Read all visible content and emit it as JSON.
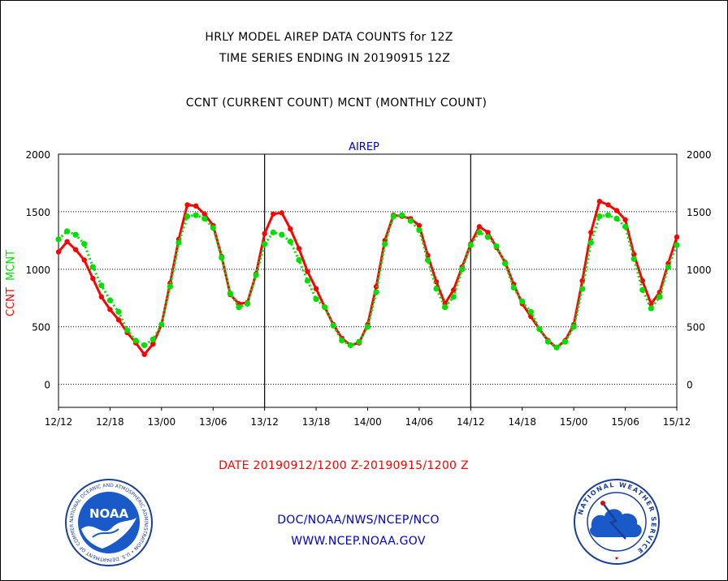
{
  "header": {
    "title_line1": "HRLY MODEL AIREP DATA COUNTS for 12Z",
    "title_line2": "TIME SERIES ENDING IN 20190915 12Z",
    "subtitle": "CCNT (CURRENT COUNT) MCNT (MONTHLY COUNT)"
  },
  "footer": {
    "date_range": "DATE 20190912/1200 Z-20190915/1200 Z",
    "org": "DOC/NOAA/NWS/NCEP/NCO",
    "url": "WWW.NCEP.NOAA.GOV"
  },
  "logos": {
    "noaa_text": "NOAA",
    "noaa_ring": "NATIONAL OCEANIC AND ATMOSPHERIC ADMINISTRATION • U.S. DEPARTMENT OF COMMERCE •",
    "nws_ring": "NATIONAL WEATHER SERVICE"
  },
  "chart_data": {
    "type": "line",
    "title": "AIREP",
    "ylabel_ccnt": "CCNT",
    "ylabel_mcnt": "MCNT",
    "ylim": [
      -200,
      2000
    ],
    "y_ticks": [
      0,
      500,
      1000,
      1500,
      2000
    ],
    "x_hours_range": [
      0,
      72
    ],
    "x_ticks": [
      {
        "hour": 0,
        "label": "12/12"
      },
      {
        "hour": 6,
        "label": "12/18"
      },
      {
        "hour": 12,
        "label": "13/00"
      },
      {
        "hour": 18,
        "label": "13/06"
      },
      {
        "hour": 24,
        "label": "13/12"
      },
      {
        "hour": 30,
        "label": "13/18"
      },
      {
        "hour": 36,
        "label": "14/00"
      },
      {
        "hour": 42,
        "label": "14/06"
      },
      {
        "hour": 48,
        "label": "14/12"
      },
      {
        "hour": 54,
        "label": "14/18"
      },
      {
        "hour": 60,
        "label": "15/00"
      },
      {
        "hour": 66,
        "label": "15/06"
      },
      {
        "hour": 72,
        "label": "15/12"
      }
    ],
    "day_dividers": [
      24,
      48
    ],
    "grid": "dotted horizontal",
    "colors": {
      "ccnt": "#ff0000",
      "mcnt": "#00e000",
      "title": "#0000cc",
      "divider": "#000000"
    },
    "series": [
      {
        "name": "CCNT",
        "x": [
          0,
          1,
          2,
          3,
          4,
          5,
          6,
          7,
          8,
          9,
          10,
          11,
          12,
          13,
          14,
          15,
          16,
          17,
          18,
          19,
          20,
          21,
          22,
          23,
          24,
          25,
          26,
          27,
          28,
          29,
          30,
          31,
          32,
          33,
          34,
          35,
          36,
          37,
          38,
          39,
          40,
          41,
          42,
          43,
          44,
          45,
          46,
          47,
          48,
          49,
          50,
          51,
          52,
          53,
          54,
          55,
          56,
          57,
          58,
          59,
          60,
          61,
          62,
          63,
          64,
          65,
          66,
          67,
          68,
          69,
          70,
          71,
          72
        ],
        "y": [
          1150,
          1240,
          1170,
          1080,
          920,
          760,
          650,
          560,
          450,
          360,
          260,
          350,
          520,
          880,
          1260,
          1560,
          1550,
          1480,
          1380,
          1110,
          780,
          700,
          710,
          960,
          1310,
          1480,
          1490,
          1350,
          1180,
          980,
          830,
          670,
          520,
          400,
          340,
          360,
          520,
          850,
          1250,
          1470,
          1460,
          1440,
          1380,
          1120,
          890,
          700,
          820,
          1020,
          1220,
          1370,
          1320,
          1190,
          1060,
          870,
          700,
          590,
          480,
          380,
          320,
          380,
          520,
          900,
          1320,
          1590,
          1560,
          1510,
          1430,
          1130,
          900,
          700,
          800,
          1050,
          1280
        ]
      },
      {
        "name": "MCNT",
        "x": [
          0,
          1,
          2,
          3,
          4,
          5,
          6,
          7,
          8,
          9,
          10,
          11,
          12,
          13,
          14,
          15,
          16,
          17,
          18,
          19,
          20,
          21,
          22,
          23,
          24,
          25,
          26,
          27,
          28,
          29,
          30,
          31,
          32,
          33,
          34,
          35,
          36,
          37,
          38,
          39,
          40,
          41,
          42,
          43,
          44,
          45,
          46,
          47,
          48,
          49,
          50,
          51,
          52,
          53,
          54,
          55,
          56,
          57,
          58,
          59,
          60,
          61,
          62,
          63,
          64,
          65,
          66,
          67,
          68,
          69,
          70,
          71,
          72
        ],
        "y": [
          1260,
          1330,
          1300,
          1220,
          1020,
          860,
          730,
          630,
          470,
          380,
          340,
          390,
          520,
          850,
          1230,
          1460,
          1470,
          1440,
          1360,
          1100,
          790,
          670,
          700,
          950,
          1220,
          1320,
          1300,
          1240,
          1080,
          900,
          740,
          670,
          510,
          380,
          340,
          370,
          500,
          800,
          1220,
          1460,
          1470,
          1420,
          1340,
          1080,
          830,
          670,
          760,
          1000,
          1210,
          1320,
          1280,
          1200,
          1050,
          840,
          720,
          630,
          480,
          370,
          320,
          370,
          500,
          830,
          1230,
          1460,
          1470,
          1440,
          1370,
          1090,
          820,
          660,
          760,
          1020,
          1210
        ]
      }
    ]
  }
}
